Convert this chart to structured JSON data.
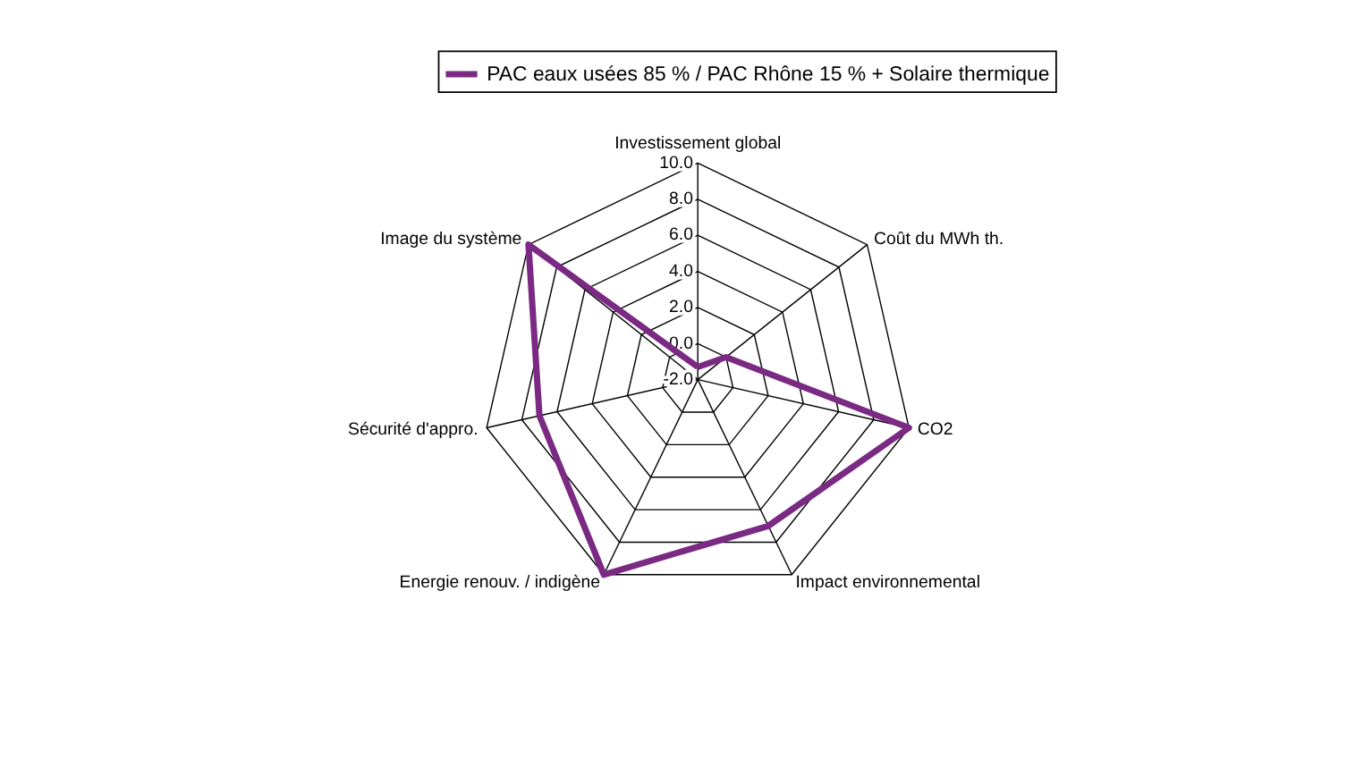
{
  "chart_data": {
    "type": "radar",
    "categories": [
      "Investissement global",
      "Coût du MWh th.",
      "CO2",
      "Impact environnemental",
      "Energie renouv. / indigène",
      "Sécurité d'appro.",
      "Image du système"
    ],
    "series": [
      {
        "name": "PAC eaux usées 85 % / PAC Rhône 15 % + Solaire thermique",
        "color": "#7b2a84",
        "values": [
          -1.3,
          0,
          10,
          7,
          10,
          7,
          10
        ]
      }
    ],
    "ylim": [
      -2,
      10
    ],
    "yticks": [
      {
        "value": -2,
        "label": "-2.0"
      },
      {
        "value": 0,
        "label": "0.0"
      },
      {
        "value": 2,
        "label": "2.0"
      },
      {
        "value": 4,
        "label": "4.0"
      },
      {
        "value": 6,
        "label": "6.0"
      },
      {
        "value": 8,
        "label": "8.0"
      },
      {
        "value": 10,
        "label": "10.0"
      }
    ],
    "grid": true,
    "legend": "top",
    "marker": "none"
  }
}
